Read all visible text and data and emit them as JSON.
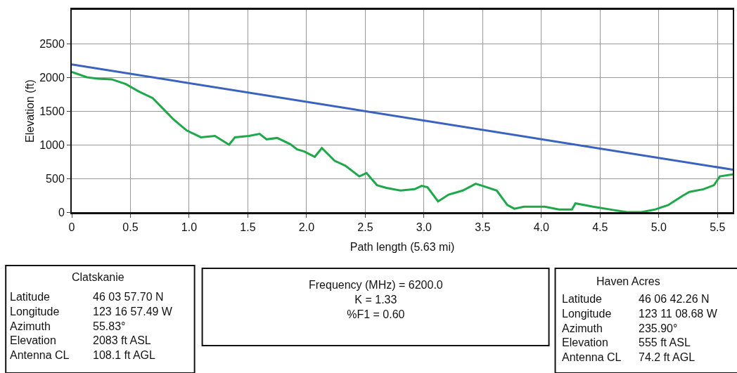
{
  "chart_data": {
    "type": "line",
    "xlabel": "Path length (5.63 mi)",
    "ylabel": "Elevation (ft)",
    "xlim": [
      0,
      5.63
    ],
    "ylim": [
      0,
      3000
    ],
    "xticks": [
      0,
      0.5,
      {
        "value": 1,
        "label": "1.0"
      },
      1.5,
      {
        "value": 2,
        "label": "2.0"
      },
      2.5,
      {
        "value": 3,
        "label": "3.0"
      },
      3.5,
      {
        "value": 4,
        "label": "4.0"
      },
      4.5,
      {
        "value": 5,
        "label": "5.0"
      },
      5.5
    ],
    "yticks": [
      0,
      500,
      1000,
      1500,
      2000,
      2500
    ],
    "grid": true,
    "marker": "none",
    "line_style": "solid",
    "series": [
      {
        "color": "#1fa84a",
        "x": [
          0,
          0.13,
          0.22,
          0.34,
          0.46,
          0.57,
          0.69,
          0.78,
          0.87,
          0.98,
          1.1,
          1.22,
          1.34,
          1.39,
          1.51,
          1.6,
          1.66,
          1.75,
          1.86,
          1.92,
          1.98,
          2.07,
          2.13,
          2.24,
          2.33,
          2.45,
          2.51,
          2.6,
          2.68,
          2.8,
          2.92,
          2.98,
          3.03,
          3.12,
          3.21,
          3.33,
          3.44,
          3.5,
          3.62,
          3.71,
          3.77,
          3.85,
          4.03,
          4.15,
          4.26,
          4.29,
          4.44,
          4.62,
          4.73,
          4.85,
          4.97,
          5.08,
          5.2,
          5.26,
          5.38,
          5.47,
          5.52,
          5.63
        ],
        "values": [
          2080,
          2000,
          1980,
          1970,
          1900,
          1790,
          1690,
          1530,
          1370,
          1210,
          1110,
          1130,
          1000,
          1110,
          1130,
          1160,
          1080,
          1100,
          1010,
          930,
          900,
          820,
          950,
          760,
          690,
          530,
          580,
          400,
          360,
          320,
          340,
          390,
          370,
          160,
          260,
          320,
          420,
          390,
          320,
          105,
          50,
          80,
          80,
          40,
          40,
          130,
          80,
          30,
          0,
          0,
          40,
          105,
          240,
          300,
          340,
          400,
          530,
          560
        ]
      },
      {
        "color": "#3a62c0",
        "x": [
          0,
          5.63
        ],
        "values": [
          2190,
          630
        ]
      }
    ],
    "annotations": [
      "Clatskanie",
      "Latitude\nLongitude\nAzimuth\nElevation\nAntenna CL",
      "46 03 57.70 N\n123 16 57.49 W\n55.83°\n2083 ft ASL\n108.1 ft AGL",
      "Frequency (MHz) = 6200.0\nK = 1.33\n%F1 = 0.60",
      "Haven Acres",
      "Latitude\nLongitude\nAzimuth\nElevation\nAntenna CL",
      "46 06 42.26 N\n123 11 08.68 W\n235.90°\n555 ft ASL\n74.2 ft AGL"
    ]
  }
}
